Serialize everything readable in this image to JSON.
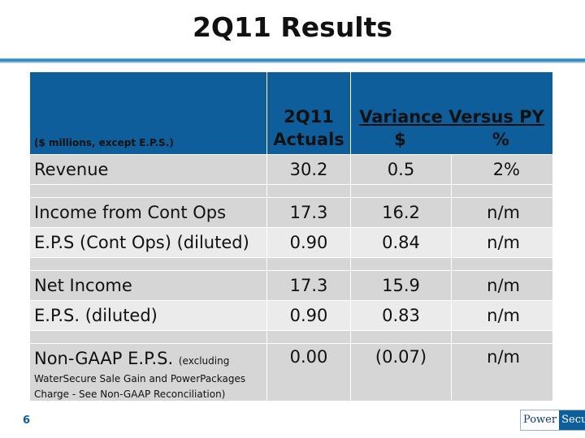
{
  "title": "2Q11 Results",
  "header": {
    "label": "($ millions, except E.P.S.)",
    "col1_line1": "2Q11",
    "col1_line2": "Actuals",
    "variance_title": "Variance Versus PY",
    "var_dollar": "$",
    "var_pct": "%"
  },
  "rows": [
    {
      "label": "Revenue",
      "actual": "30.2",
      "var_dollar": "0.5",
      "var_pct": "2%"
    },
    {
      "label": "Income from Cont Ops",
      "actual": "17.3",
      "var_dollar": "16.2",
      "var_pct": "n/m"
    },
    {
      "label": "E.P.S (Cont Ops) (diluted)",
      "actual": "0.90",
      "var_dollar": "0.84",
      "var_pct": "n/m"
    },
    {
      "label": "Net Income",
      "actual": "17.3",
      "var_dollar": "15.9",
      "var_pct": "n/m"
    },
    {
      "label": "E.P.S. (diluted)",
      "actual": "0.90",
      "var_dollar": "0.83",
      "var_pct": "n/m"
    },
    {
      "label": "Non-GAAP E.P.S.",
      "label_note": "(excluding WaterSecure Sale Gain and PowerPackages Charge - See Non-GAAP Reconciliation)",
      "actual": "0.00",
      "var_dollar": "(0.07)",
      "var_pct": "n/m"
    }
  ],
  "footer": {
    "page_number": "6",
    "logo_left": "Power",
    "logo_right": "Secure"
  },
  "colors": {
    "header_bg": "#0f5e9c",
    "row_dark": "#d6d6d6",
    "row_light": "#ebebeb"
  }
}
